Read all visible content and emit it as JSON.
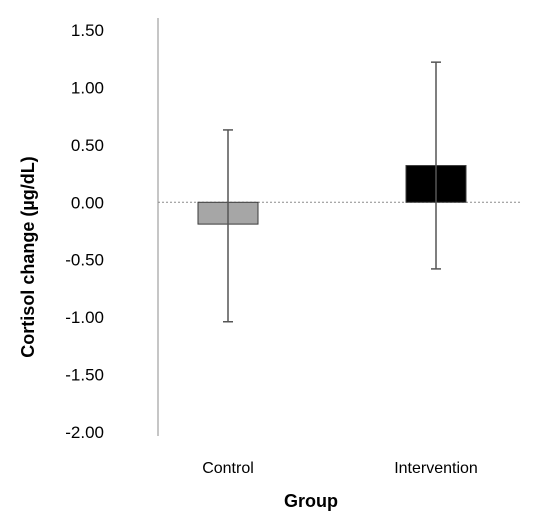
{
  "chart_data": {
    "type": "bar",
    "xlabel": "Group",
    "ylabel": "Cortisol change (µg/dL)",
    "categories": [
      "Control",
      "Intervention"
    ],
    "values": [
      -0.19,
      0.32
    ],
    "error_upper": [
      0.63,
      1.22
    ],
    "error_lower": [
      -1.04,
      -0.58
    ],
    "bar_colors": [
      "#a6a6a6",
      "#000000"
    ],
    "ylim": [
      -2.0,
      1.5
    ],
    "yticks": [
      "1.50",
      "1.00",
      "0.50",
      "0.00",
      "-0.50",
      "-1.00",
      "-1.50",
      "-2.00"
    ],
    "ytick_values": [
      1.5,
      1.0,
      0.5,
      0.0,
      -0.5,
      -1.0,
      -1.5,
      -2.0
    ],
    "zero_line": "dotted",
    "grid": false,
    "legend": "none"
  }
}
